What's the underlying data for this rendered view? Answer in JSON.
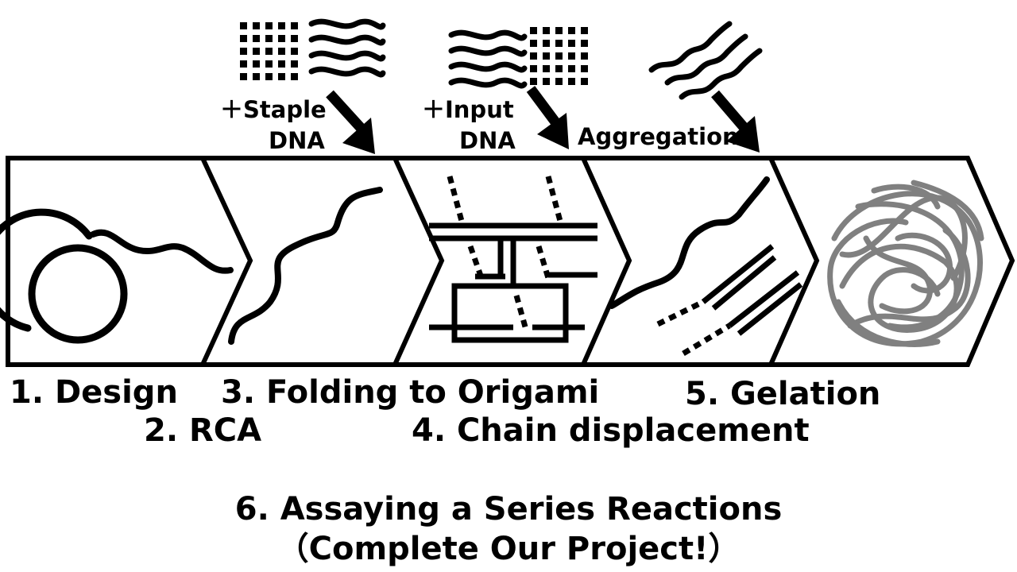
{
  "steps": {
    "design": "1. Design",
    "rca": "2. RCA",
    "folding": "3. Folding to Origami",
    "chain": "4. Chain displacement",
    "gelation": "5. Gelation"
  },
  "inputs": {
    "staple_line1": "＋Staple",
    "staple_line2": "DNA",
    "input_line1": "＋Input",
    "input_line2": "DNA",
    "aggregation": "Aggregation"
  },
  "footer": {
    "line1": "6. Assaying a Series Reactions",
    "line2": "（Complete Our Project!）"
  },
  "colors": {
    "stroke": "#000000",
    "gel": "#808080",
    "background": "#ffffff"
  }
}
